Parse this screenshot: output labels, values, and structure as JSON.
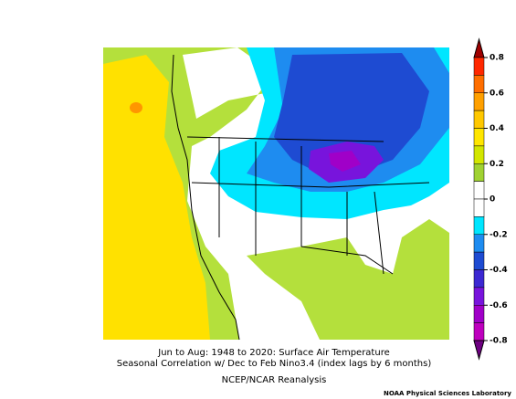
{
  "map": {
    "caption_line1": "Jun to Aug: 1948 to 2020: Surface Air Temperature",
    "caption_line2": "Seasonal Correlation w/ Dec to Feb Nino3.4 (index lags by 6 months)",
    "source": "NCEP/NCAR Reanalysis",
    "credit": "NOAA Physical Sciences Laboratory"
  },
  "colorbar": {
    "ticks": [
      0.8,
      0.6,
      0.4,
      0.2,
      0,
      -0.2,
      -0.4,
      -0.6,
      -0.8
    ],
    "colors": [
      "#a00000",
      "#ff2800",
      "#ff6e00",
      "#ffa000",
      "#ffc800",
      "#ffe600",
      "#d2e600",
      "#a0d232",
      "#ffffff",
      "#ffffff",
      "#00e6ff",
      "#1e8cf0",
      "#1e4bd2",
      "#3c28d2",
      "#7814dc",
      "#a000c8",
      "#be00be",
      "#6e0082"
    ]
  }
}
